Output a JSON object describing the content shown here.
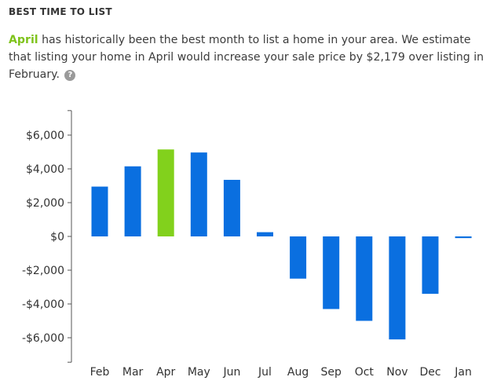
{
  "header": {
    "title": "BEST TIME TO LIST"
  },
  "summary": {
    "best_month": "April",
    "text_before": " has historically been the best month to list a home in your area. We estimate that listing your home in April would increase your sale price by $2,179 over listing in February. ",
    "help_icon": "question-circle-icon",
    "help_glyph": "?"
  },
  "chart_data": {
    "type": "bar",
    "categories": [
      "Feb",
      "Mar",
      "Apr",
      "May",
      "Jun",
      "Jul",
      "Aug",
      "Sep",
      "Oct",
      "Nov",
      "Dec",
      "Jan"
    ],
    "values": [
      2950,
      4150,
      5150,
      4970,
      3350,
      250,
      -2500,
      -4300,
      -5000,
      -6100,
      -3400,
      -100
    ],
    "highlight_category": "Apr",
    "colors": {
      "bar": "#0a6fe0",
      "highlight": "#82d11c",
      "axis": "#555555"
    },
    "ylim": [
      -7450,
      7450
    ],
    "yticks": [
      6000,
      4000,
      2000,
      0,
      -2000,
      -4000,
      -6000
    ],
    "ytick_labels": [
      "$6,000",
      "$4,000",
      "$2,000",
      "$0",
      "-$2,000",
      "-$4,000",
      "-$6,000"
    ],
    "title": "",
    "xlabel": "",
    "ylabel": "",
    "grid": false
  }
}
